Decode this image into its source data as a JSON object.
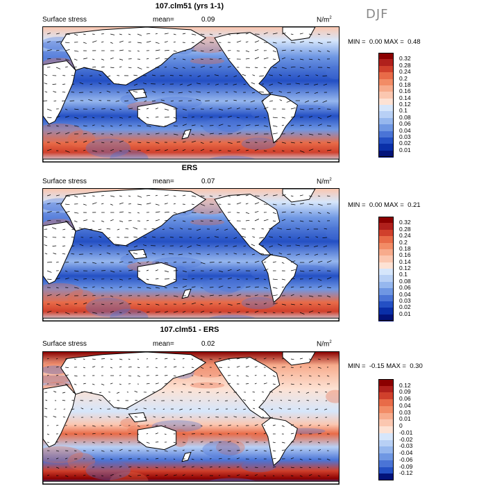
{
  "season": "DJF",
  "unit_text": "N/m",
  "unit_exp": "2",
  "panels": [
    {
      "title": "107.clm51 (yrs 1-1)",
      "field": "Surface stress",
      "mean_label": "mean=",
      "mean_value": "0.09",
      "min_label": "MIN =",
      "min_value": "0.00",
      "max_label": "MAX =",
      "max_value": "0.48",
      "colorbar_ticks": [
        "0.32",
        "0.28",
        "0.24",
        "0.2",
        "0.18",
        "0.16",
        "0.14",
        "0.12",
        "0.1",
        "0.08",
        "0.06",
        "0.04",
        "0.03",
        "0.02",
        "0.01"
      ],
      "colorbar_colors": [
        "#8b0000",
        "#b0201c",
        "#d0402c",
        "#e86b48",
        "#f28c66",
        "#f7ab8c",
        "#fbc7b0",
        "#fde2d4",
        "#d6e6fb",
        "#b8d0f5",
        "#96b7ee",
        "#6f97e3",
        "#4a74d6",
        "#2450c4",
        "#0a2fa8",
        "#03137a"
      ]
    },
    {
      "title": "ERS",
      "field": "Surface stress",
      "mean_label": "mean=",
      "mean_value": "0.07",
      "min_label": "MIN =",
      "min_value": "0.00",
      "max_label": "MAX =",
      "max_value": "0.21",
      "colorbar_ticks": [
        "0.32",
        "0.28",
        "0.24",
        "0.2",
        "0.18",
        "0.16",
        "0.14",
        "0.12",
        "0.1",
        "0.08",
        "0.06",
        "0.04",
        "0.03",
        "0.02",
        "0.01"
      ],
      "colorbar_colors": [
        "#8b0000",
        "#b0201c",
        "#d0402c",
        "#e86b48",
        "#f28c66",
        "#f7ab8c",
        "#fbc7b0",
        "#fde2d4",
        "#d6e6fb",
        "#b8d0f5",
        "#96b7ee",
        "#6f97e3",
        "#4a74d6",
        "#2450c4",
        "#0a2fa8",
        "#03137a"
      ]
    },
    {
      "title": "107.clm51 - ERS",
      "field": "Surface stress",
      "mean_label": "mean=",
      "mean_value": "0.02",
      "min_label": "MIN =",
      "min_value": "-0.15",
      "max_label": "MAX =",
      "max_value": "0.30",
      "colorbar_ticks": [
        "0.12",
        "0.09",
        "0.06",
        "0.04",
        "0.03",
        "0.01",
        "0",
        "-0.01",
        "-0.02",
        "-0.03",
        "-0.04",
        "-0.06",
        "-0.09",
        "-0.12"
      ],
      "colorbar_colors": [
        "#8b0000",
        "#b0201c",
        "#d0402c",
        "#e86b48",
        "#f28c66",
        "#f7ab8c",
        "#fbc7b0",
        "#fde2d4",
        "#d6e6fb",
        "#b8d0f5",
        "#96b7ee",
        "#6f97e3",
        "#4a74d6",
        "#2450c4",
        "#03137a"
      ]
    }
  ]
}
